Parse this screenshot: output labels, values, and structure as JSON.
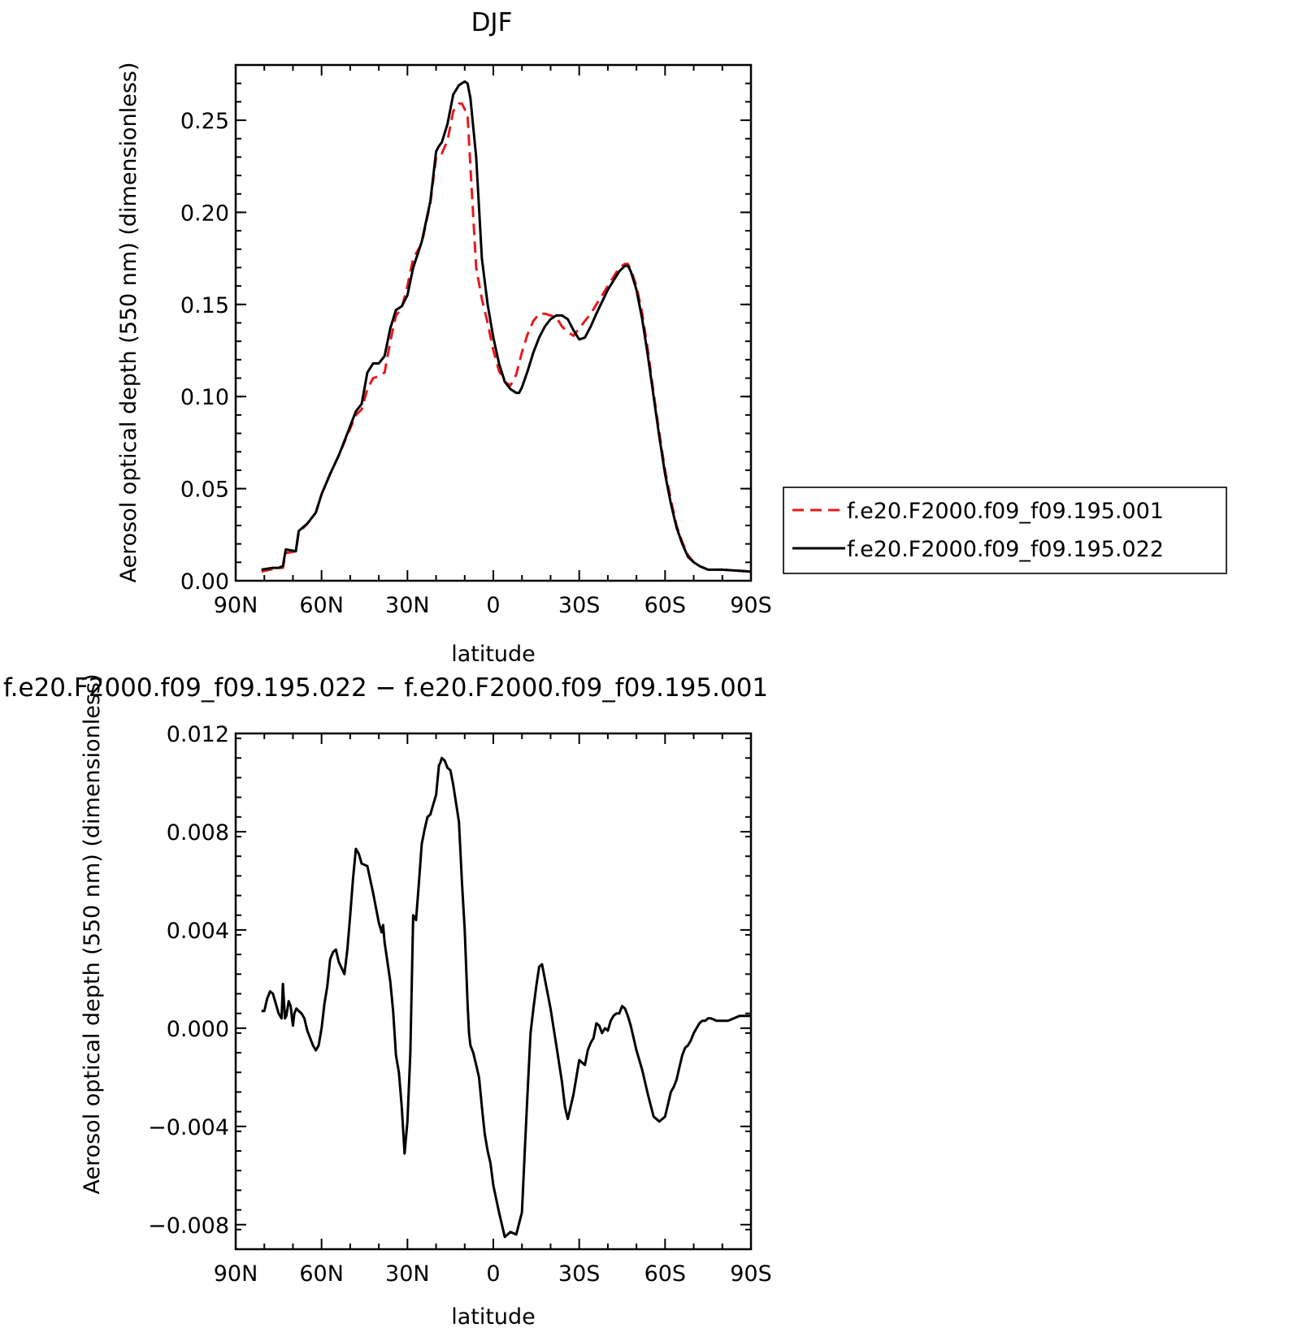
{
  "chart_data": [
    {
      "type": "line",
      "title": "DJF",
      "xlabel": "latitude",
      "ylabel": "Aerosol optical depth (550 nm) (dimensionless)",
      "xlim": [
        90,
        -90
      ],
      "ylim": [
        0,
        0.28
      ],
      "xticks": [
        90,
        60,
        30,
        0,
        -30,
        -60,
        -90
      ],
      "xtick_labels": [
        "90N",
        "60N",
        "30N",
        "0",
        "30S",
        "60S",
        "90S"
      ],
      "yticks": [
        0,
        0.05,
        0.1,
        0.15,
        0.2,
        0.25
      ],
      "ytick_labels": [
        "0.00",
        "0.05",
        "0.10",
        "0.15",
        "0.20",
        "0.25"
      ],
      "grid": false,
      "legend_position": "right",
      "series": [
        {
          "name": "f.e20.F2000.f09_f09.195.001",
          "color": "#e8191d",
          "dash": "dashed",
          "x": [
            81,
            75,
            73.5,
            72.5,
            69,
            68,
            65,
            62,
            60,
            57,
            54,
            51,
            48,
            46,
            44,
            42,
            40,
            38,
            36,
            34,
            32,
            30,
            28,
            25,
            22,
            20,
            19,
            18,
            16,
            14,
            12,
            11,
            9,
            8,
            6,
            4,
            2,
            0,
            -2,
            -4,
            -6,
            -8,
            -10,
            -12,
            -14,
            -16,
            -18,
            -20,
            -22,
            -24,
            -26,
            -28,
            -30,
            -32,
            -34,
            -36,
            -40,
            -44,
            -46,
            -47,
            -48,
            -50,
            -52,
            -54,
            -56,
            -58,
            -60,
            -62,
            -64,
            -66,
            -68,
            -70,
            -72,
            -75,
            -80,
            -90
          ],
          "y": [
            0.005,
            0.007,
            0.007,
            0.015,
            0.016,
            0.026,
            0.031,
            0.037,
            0.047,
            0.058,
            0.068,
            0.079,
            0.09,
            0.093,
            0.104,
            0.11,
            0.111,
            0.113,
            0.13,
            0.144,
            0.148,
            0.16,
            0.175,
            0.183,
            0.205,
            0.23,
            0.232,
            0.232,
            0.239,
            0.255,
            0.259,
            0.259,
            0.253,
            0.225,
            0.17,
            0.153,
            0.14,
            0.125,
            0.114,
            0.108,
            0.106,
            0.112,
            0.124,
            0.134,
            0.141,
            0.145,
            0.145,
            0.144,
            0.143,
            0.138,
            0.135,
            0.133,
            0.137,
            0.141,
            0.145,
            0.15,
            0.16,
            0.17,
            0.172,
            0.172,
            0.169,
            0.16,
            0.145,
            0.125,
            0.102,
            0.08,
            0.06,
            0.044,
            0.03,
            0.021,
            0.014,
            0.01,
            0.008,
            0.006,
            0.006,
            0.005
          ]
        },
        {
          "name": "f.e20.F2000.f09_f09.195.022",
          "color": "#000000",
          "dash": "solid",
          "x": [
            81,
            77,
            75,
            73.5,
            72.5,
            69,
            68,
            65,
            62,
            60,
            57,
            54,
            51,
            48,
            46,
            44,
            42,
            40,
            38,
            36,
            34,
            32,
            30,
            28,
            25,
            22,
            20,
            19,
            18,
            16,
            14,
            12,
            10,
            9,
            8,
            6,
            4,
            2,
            0,
            -2,
            -4,
            -6,
            -8,
            -9,
            -10,
            -12,
            -14,
            -16,
            -18,
            -20,
            -22,
            -24,
            -26,
            -28,
            -30,
            -32,
            -34,
            -36,
            -40,
            -44,
            -46,
            -47,
            -48,
            -50,
            -52,
            -54,
            -56,
            -58,
            -60,
            -62,
            -64,
            -66,
            -68,
            -70,
            -72,
            -75,
            -80,
            -90
          ],
          "y": [
            0.006,
            0.007,
            0.007,
            0.008,
            0.017,
            0.016,
            0.027,
            0.031,
            0.037,
            0.047,
            0.058,
            0.068,
            0.08,
            0.092,
            0.096,
            0.113,
            0.118,
            0.118,
            0.122,
            0.137,
            0.147,
            0.149,
            0.155,
            0.17,
            0.184,
            0.206,
            0.233,
            0.236,
            0.238,
            0.248,
            0.264,
            0.269,
            0.271,
            0.27,
            0.262,
            0.23,
            0.175,
            0.15,
            0.132,
            0.118,
            0.108,
            0.104,
            0.102,
            0.102,
            0.105,
            0.114,
            0.124,
            0.132,
            0.138,
            0.142,
            0.144,
            0.144,
            0.142,
            0.136,
            0.131,
            0.132,
            0.138,
            0.145,
            0.158,
            0.168,
            0.171,
            0.171,
            0.168,
            0.158,
            0.142,
            0.122,
            0.1,
            0.078,
            0.058,
            0.042,
            0.029,
            0.02,
            0.013,
            0.01,
            0.008,
            0.006,
            0.006,
            0.005
          ]
        }
      ]
    },
    {
      "type": "line",
      "title": "f.e20.F2000.f09_f09.195.022 − f.e20.F2000.f09_f09.195.001",
      "xlabel": "latitude",
      "ylabel": "Aerosol optical depth (550 nm) (dimensionless)",
      "xlim": [
        90,
        -90
      ],
      "ylim": [
        -0.009,
        0.012
      ],
      "xticks": [
        90,
        60,
        30,
        0,
        -30,
        -60,
        -90
      ],
      "xtick_labels": [
        "90N",
        "60N",
        "30N",
        "0",
        "30S",
        "60S",
        "90S"
      ],
      "yticks": [
        -0.008,
        -0.004,
        0.0,
        0.004,
        0.008,
        0.012
      ],
      "ytick_labels": [
        "−0.008",
        "−0.004",
        "0.000",
        "0.004",
        "0.008",
        "0.012"
      ],
      "grid": false,
      "series": [
        {
          "color": "#000000",
          "dash": "solid",
          "x": [
            81,
            80,
            79,
            78,
            77,
            76,
            75,
            74,
            73.5,
            72.8,
            72.3,
            71.5,
            70.8,
            70,
            69.5,
            68.8,
            68,
            67,
            66,
            65,
            64,
            63,
            62,
            61,
            60,
            59,
            58,
            57,
            56,
            55,
            54,
            52,
            51,
            50,
            49,
            48,
            47,
            46,
            44,
            42,
            40,
            39,
            38.5,
            38,
            36,
            35,
            34,
            33,
            32,
            31,
            30,
            29,
            28,
            27,
            26,
            25,
            24,
            23,
            22,
            21,
            20,
            19,
            18.5,
            18,
            17,
            16,
            15,
            14,
            12,
            11,
            10,
            9,
            8.5,
            8,
            7,
            6,
            5,
            4,
            3,
            2,
            1,
            0,
            -2,
            -4,
            -6,
            -8,
            -10,
            -11,
            -12,
            -13,
            -14,
            -15,
            -16,
            -17,
            -18,
            -20,
            -22,
            -24,
            -25,
            -26,
            -28,
            -30,
            -32,
            -33,
            -34,
            -35,
            -36,
            -37,
            -38,
            -39,
            -40,
            -41,
            -42,
            -43,
            -44,
            -45,
            -46,
            -47,
            -48,
            -49,
            -50,
            -52,
            -54,
            -56,
            -58,
            -60,
            -61,
            -62,
            -63,
            -64,
            -65,
            -66,
            -67,
            -68,
            -69,
            -70,
            -71,
            -72,
            -73,
            -74,
            -75,
            -76,
            -78,
            -80,
            -82,
            -84,
            -86,
            -88,
            -90
          ],
          "y": [
            0.0007,
            0.0007,
            0.0012,
            0.0015,
            0.0014,
            0.001,
            0.0006,
            0.0004,
            0.0018,
            0.0004,
            0.0005,
            0.0011,
            0.0009,
            0.0001,
            0.0006,
            0.0008,
            0.0007,
            0.0006,
            0.0004,
            -0.0001,
            -0.0004,
            -0.0007,
            -0.0009,
            -0.0007,
            0.0,
            0.001,
            0.0017,
            0.0028,
            0.0031,
            0.0032,
            0.0027,
            0.0022,
            0.0032,
            0.0046,
            0.0061,
            0.0073,
            0.0071,
            0.0067,
            0.0066,
            0.0055,
            0.0043,
            0.0039,
            0.0042,
            0.0035,
            0.0019,
            0.0007,
            -0.0011,
            -0.0018,
            -0.0032,
            -0.0051,
            -0.0038,
            -0.001,
            0.0046,
            0.0044,
            0.0059,
            0.0075,
            0.0081,
            0.0086,
            0.0087,
            0.0091,
            0.0095,
            0.0107,
            0.0108,
            0.011,
            0.0109,
            0.0106,
            0.0105,
            0.0099,
            0.0084,
            0.006,
            0.004,
            0.001,
            -0.0002,
            -0.0007,
            -0.001,
            -0.0015,
            -0.002,
            -0.0032,
            -0.0043,
            -0.005,
            -0.0055,
            -0.0064,
            -0.0075,
            -0.0085,
            -0.0083,
            -0.0084,
            -0.0075,
            -0.005,
            -0.0025,
            -0.0002,
            0.0008,
            0.0017,
            0.0025,
            0.0026,
            0.002,
            0.0008,
            -0.0007,
            -0.0022,
            -0.0032,
            -0.0037,
            -0.0027,
            -0.0013,
            -0.0015,
            -0.0009,
            -0.0006,
            -0.0004,
            0.0002,
            0.0001,
            -0.0002,
            0.0,
            -0.0001,
            0.0003,
            0.0005,
            0.0006,
            0.0006,
            0.0009,
            0.0008,
            0.0005,
            0.0001,
            -0.0004,
            -0.0009,
            -0.0017,
            -0.0027,
            -0.0036,
            -0.0038,
            -0.0036,
            -0.0031,
            -0.0026,
            -0.0024,
            -0.0021,
            -0.0016,
            -0.0011,
            -0.0008,
            -0.0007,
            -0.0005,
            -0.0002,
            0.0,
            0.0002,
            0.0003,
            0.0003,
            0.0004,
            0.0004,
            0.0003,
            0.0003,
            0.0003,
            0.0004,
            0.0005,
            0.0005,
            0.0005
          ]
        }
      ]
    }
  ]
}
